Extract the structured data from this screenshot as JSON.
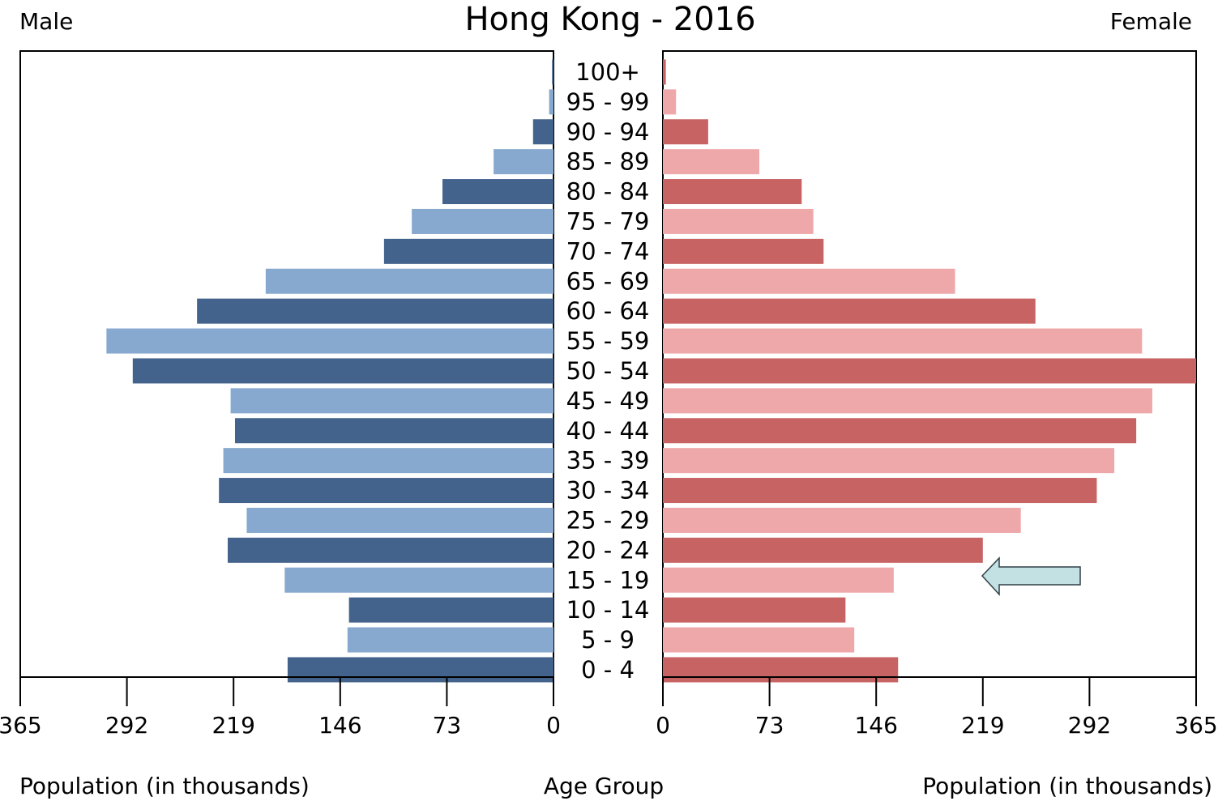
{
  "chart_data": {
    "type": "bar",
    "title": "Hong Kong - 2016",
    "left_label": "Male",
    "right_label": "Female",
    "xlabel_left": "Population (in thousands)",
    "xlabel_center": "Age Group",
    "xlabel_right": "Population (in thousands)",
    "categories": [
      "100+",
      "95 - 99",
      "90 - 94",
      "85 - 89",
      "80 - 84",
      "75 - 79",
      "70 - 74",
      "65 - 69",
      "60 - 64",
      "55 - 59",
      "50 - 54",
      "45 - 49",
      "40 - 44",
      "35 - 39",
      "30 - 34",
      "25 - 29",
      "20 - 24",
      "15 - 19",
      "10 - 14",
      "5 - 9",
      "0 - 4"
    ],
    "xlim": [
      0,
      365
    ],
    "ticks": [
      "365",
      "292",
      "219",
      "146",
      "73",
      "0"
    ],
    "ticks_right": [
      "0",
      "73",
      "146",
      "219",
      "292",
      "365"
    ],
    "series": [
      {
        "name": "Male",
        "values": [
          1,
          3,
          14,
          41,
          76,
          97,
          116,
          197,
          244,
          306,
          288,
          221,
          218,
          226,
          229,
          210,
          223,
          184,
          140,
          141,
          182
        ]
      },
      {
        "name": "Female",
        "values": [
          2,
          9,
          31,
          66,
          95,
          103,
          110,
          200,
          255,
          328,
          365,
          335,
          324,
          309,
          297,
          245,
          219,
          158,
          125,
          131,
          161
        ]
      }
    ],
    "annotation": {
      "type": "arrow",
      "points_to": "15 - 19",
      "color": "#c3e0e2"
    },
    "colors": {
      "male_dark": "#44638c",
      "male_light": "#87a8cf",
      "female_dark": "#c86364",
      "female_light": "#efa8a9"
    }
  }
}
